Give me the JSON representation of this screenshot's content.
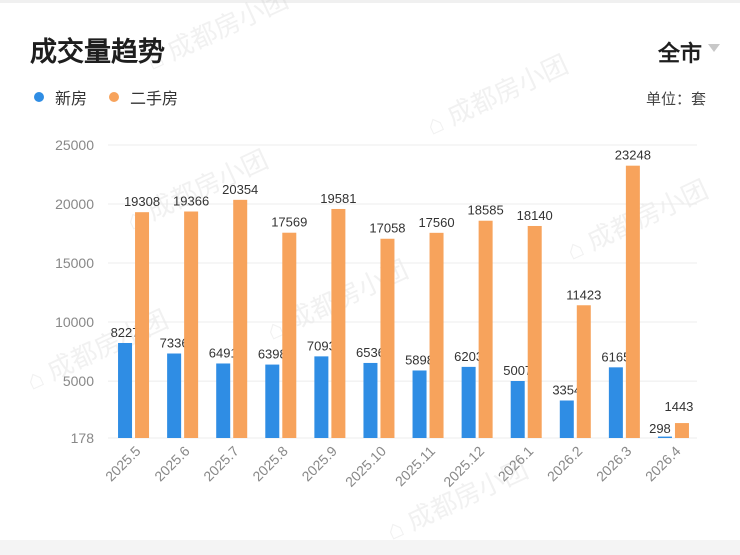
{
  "header": {
    "title": "成交量趋势",
    "region": "全市",
    "unit": "单位：套"
  },
  "watermark": "成都房小团",
  "colors": {
    "new": "#2f8de4",
    "second": "#f7a35c",
    "grid": "#ececec",
    "tick": "#888888"
  },
  "chart_data": {
    "type": "bar",
    "title": "成交量趋势",
    "categories": [
      "2025.5",
      "2025.6",
      "2025.7",
      "2025.8",
      "2025.9",
      "2025.10",
      "2025.11",
      "2025.12",
      "2026.1",
      "2026.2",
      "2026.3",
      "2026.4"
    ],
    "series": [
      {
        "name": "新房",
        "values": [
          8227,
          7336,
          6491,
          6398,
          7093,
          6536,
          5898,
          6203,
          5007,
          3354,
          6165,
          298
        ]
      },
      {
        "name": "二手房",
        "values": [
          19308,
          19366,
          20354,
          17569,
          19581,
          17058,
          17560,
          18585,
          18140,
          11423,
          23248,
          1443
        ]
      }
    ],
    "yticks": [
      178,
      5000,
      10000,
      15000,
      20000,
      25000
    ],
    "ylim": [
      178,
      25000
    ],
    "grid": true,
    "legend": "top-left"
  }
}
